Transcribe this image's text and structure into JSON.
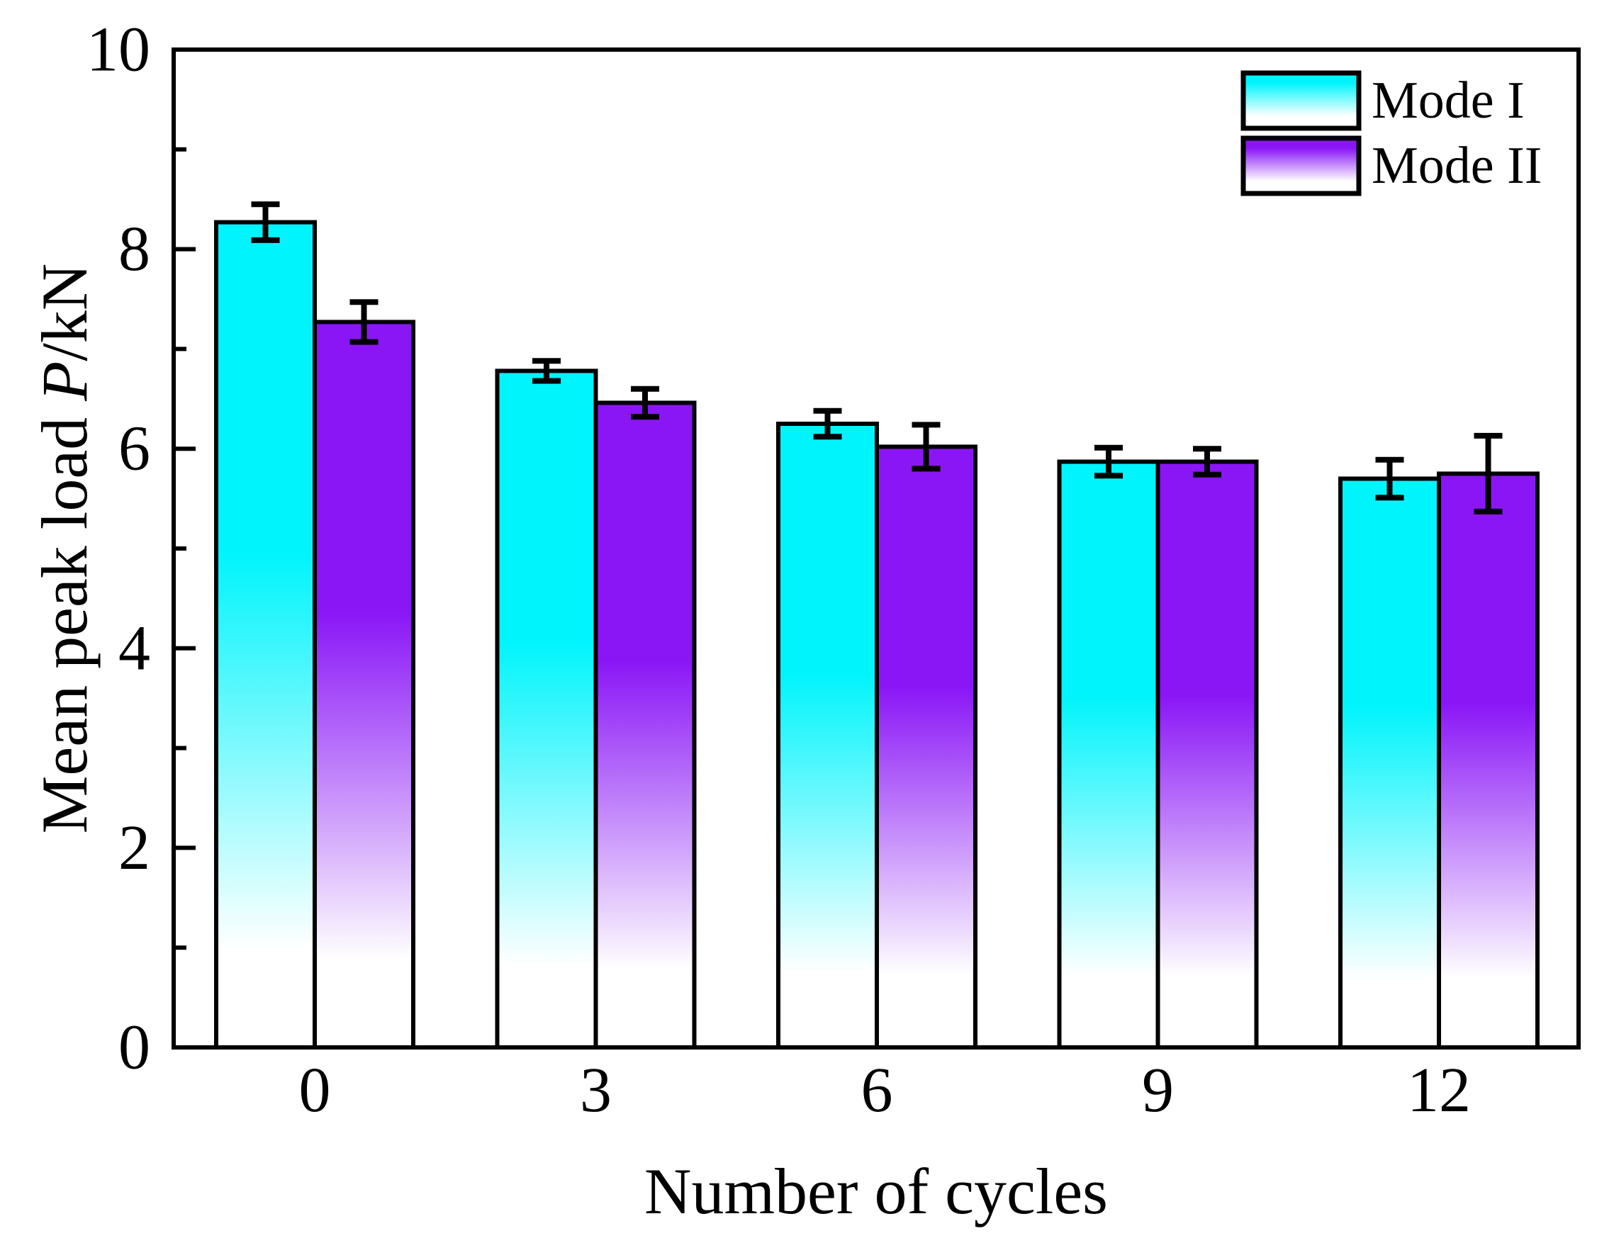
{
  "chart_data": {
    "type": "bar",
    "title": "",
    "xlabel": "Number of cycles",
    "ylabel": "Mean peak load P/kN",
    "ylabel_parts": {
      "prefix": "Mean peak load ",
      "italic": "P",
      "suffix": "/kN"
    },
    "categories": [
      "0",
      "3",
      "6",
      "9",
      "12"
    ],
    "series": [
      {
        "name": "Mode I",
        "color": "#00F4FC",
        "values": [
          8.27,
          6.78,
          6.25,
          5.87,
          5.7
        ],
        "errors": [
          0.18,
          0.1,
          0.13,
          0.14,
          0.19
        ]
      },
      {
        "name": "Mode II",
        "color": "#8A16F6",
        "values": [
          7.27,
          6.46,
          6.02,
          5.87,
          5.75
        ],
        "errors": [
          0.2,
          0.14,
          0.22,
          0.13,
          0.38
        ]
      }
    ],
    "ylim": [
      0,
      10
    ],
    "y_major_ticks": [
      0,
      2,
      4,
      6,
      8,
      10
    ],
    "y_minor_ticks": [
      1,
      3,
      5,
      7,
      9
    ],
    "grid": false,
    "legend_position": "top-right",
    "axis_color": "#000000",
    "bar_outline_color": "#000000",
    "error_bar_color": "#000000",
    "gradient_fade_to": "#FFFFFF"
  }
}
